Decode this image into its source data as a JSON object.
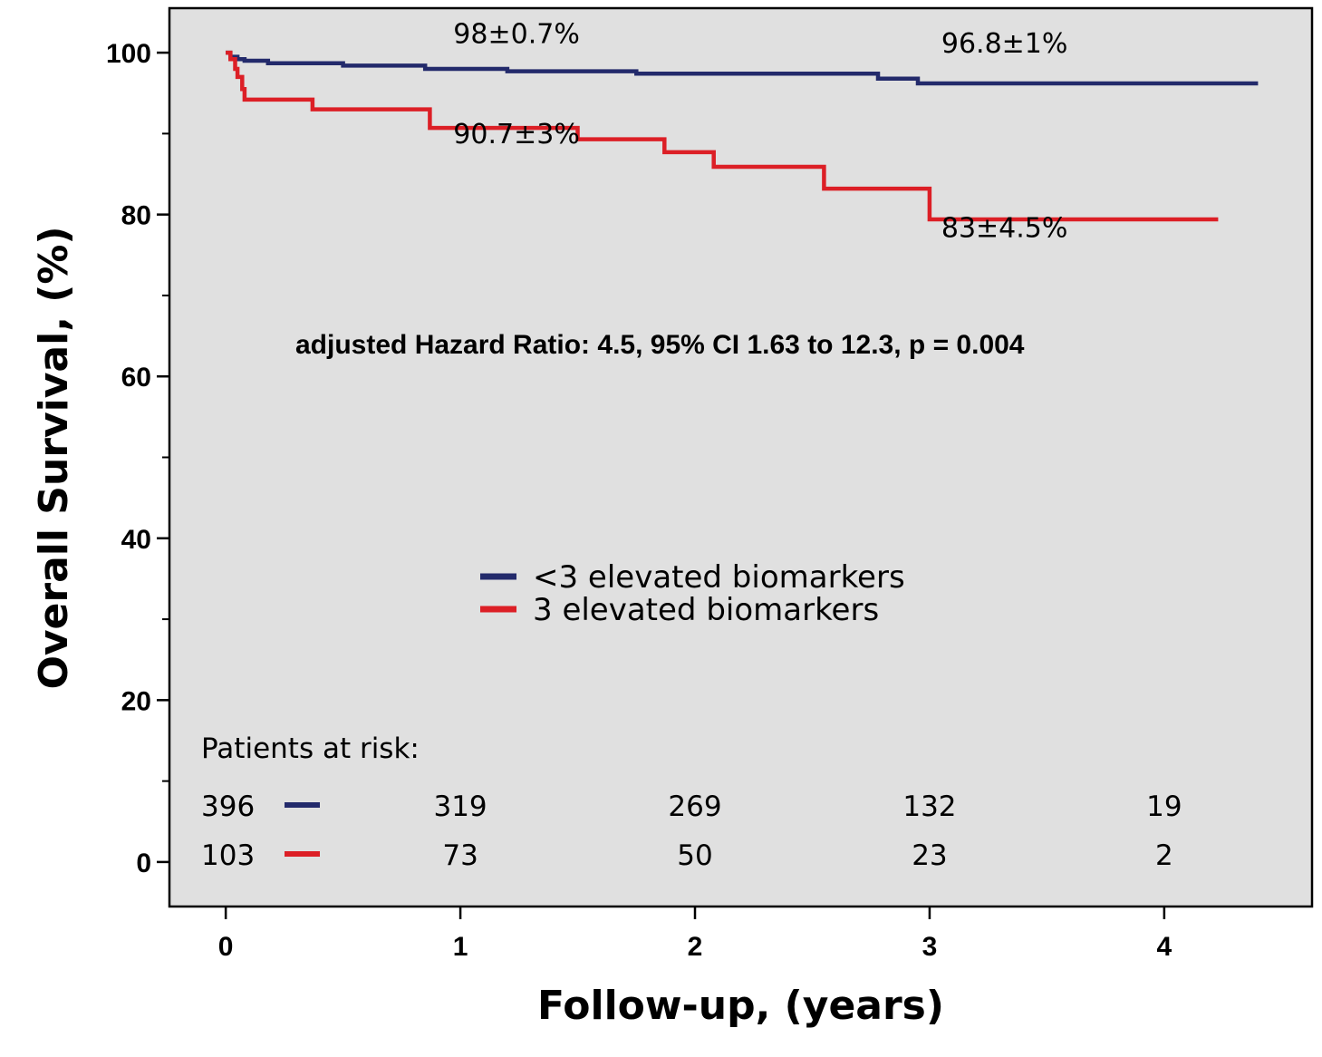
{
  "chart_data": {
    "type": "line",
    "xlabel": "Follow-up, (years)",
    "ylabel": "Overall Survival, (%)",
    "xlim": [
      -0.24,
      4.63
    ],
    "ylim": [
      -5.5,
      105.5
    ],
    "x_ticks": [
      0,
      1,
      2,
      3,
      4
    ],
    "y_major_ticks": [
      0,
      20,
      40,
      60,
      80,
      100
    ],
    "y_minor_ticks": [
      10,
      30,
      50,
      70,
      90
    ],
    "background_color": "#e0e0e0",
    "grid": false,
    "legend_position": "center",
    "series": [
      {
        "name": "<3 elevated biomarkers",
        "color": "#232a6b",
        "x": [
          0,
          0.02,
          0.05,
          0.08,
          0.18,
          0.5,
          0.85,
          1.2,
          1.75,
          2.78,
          2.95,
          4.4
        ],
        "y": [
          100,
          99.5,
          99.2,
          99.0,
          98.7,
          98.4,
          98.0,
          97.7,
          97.4,
          96.8,
          96.2,
          96.2
        ]
      },
      {
        "name": "3 elevated biomarkers",
        "color": "#dc1f26",
        "x": [
          0,
          0.02,
          0.04,
          0.05,
          0.07,
          0.08,
          0.37,
          0.85,
          0.87,
          1.5,
          1.87,
          2.08,
          2.55,
          3.0,
          4.23
        ],
        "y": [
          100,
          99.2,
          98.0,
          97.0,
          95.5,
          94.2,
          93.0,
          93.0,
          90.7,
          89.3,
          87.7,
          85.9,
          83.2,
          79.4,
          79.4
        ]
      }
    ],
    "annotations": [
      {
        "text": "98±0.7%",
        "x": 0.97,
        "y": 101.2
      },
      {
        "text": "96.8±1%",
        "x": 3.05,
        "y": 100.0
      },
      {
        "text": "90.7±3%",
        "x": 0.97,
        "y": 88.8
      },
      {
        "text": "83±4.5%",
        "x": 3.05,
        "y": 77.2
      }
    ],
    "hazard_ratio_text": "adjusted Hazard Ratio: 4.5, 95% CI 1.63 to 12.3, p = 0.004",
    "at_risk": {
      "title": "Patients at risk:",
      "rows": [
        {
          "series": "<3 elevated biomarkers",
          "color": "#232a6b",
          "values": [
            "396",
            "319",
            "269",
            "132",
            "19"
          ]
        },
        {
          "series": "3 elevated biomarkers",
          "color": "#dc1f26",
          "values": [
            "103",
            "73",
            "50",
            "23",
            "2"
          ]
        }
      ]
    }
  }
}
